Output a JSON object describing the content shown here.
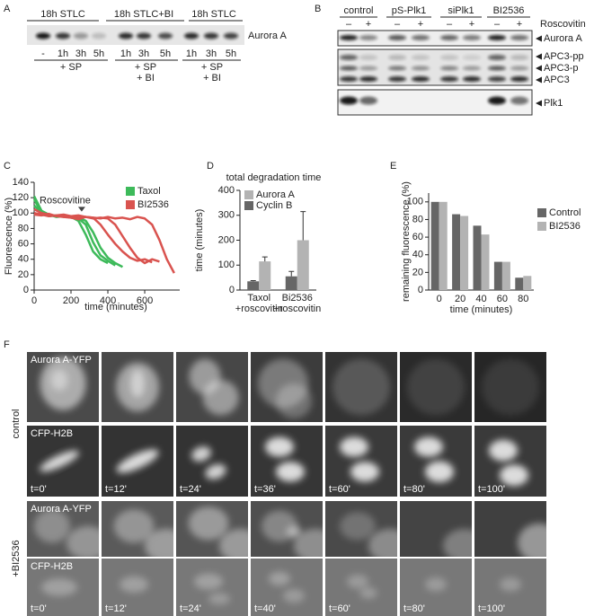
{
  "panel_a": {
    "letter": "A",
    "headers": [
      "18h STLC",
      "18h STLC+BI",
      "18h STLC"
    ],
    "lanes": [
      "-",
      "1h",
      "3h",
      "5h",
      "1h",
      "3h",
      "5h",
      "1h",
      "3h",
      "5h"
    ],
    "treatments": [
      [
        "+ SP"
      ],
      [
        "+ SP",
        "+ BI"
      ],
      [
        "+ SP",
        "+ BI"
      ]
    ],
    "protein": "Aurora A"
  },
  "panel_b": {
    "letter": "B",
    "groups": [
      "control",
      "pS-Plk1",
      "siPlk1",
      "BI2536"
    ],
    "signs": [
      "–",
      "+",
      "–",
      "+",
      "–",
      "+",
      "–",
      "+"
    ],
    "treatment": "Roscovitin",
    "labels": [
      "Aurora A",
      "APC3-pp",
      "APC3-p",
      "APC3",
      "Plk1"
    ]
  },
  "chart_data": [
    {
      "panel": "C",
      "type": "line",
      "ylabel": "Fluorescence (%)",
      "xlabel": "time (minutes)",
      "annotation": "Roscovitine",
      "legend": "upper right",
      "xlim": [
        0,
        790
      ],
      "xticks": [
        0,
        200,
        400,
        600
      ],
      "ylim": [
        0,
        140
      ],
      "yticks": [
        0,
        20,
        40,
        60,
        80,
        100,
        120,
        140
      ],
      "x": [
        0,
        40,
        80,
        120,
        160,
        200,
        240,
        280,
        320,
        360,
        400,
        440,
        480,
        520,
        560,
        600,
        640,
        680,
        720,
        760
      ],
      "series": [
        {
          "name": "Taxol",
          "color": "#3dba5a",
          "traces": [
            [
              118,
              100,
              97,
              96,
              97,
              95,
              90,
              72,
              50,
              40,
              35,
              null,
              null,
              null,
              null,
              null,
              null,
              null,
              null,
              null
            ],
            [
              122,
              103,
              98,
              95,
              96,
              94,
              93,
              85,
              62,
              45,
              38,
              32,
              null,
              null,
              null,
              null,
              null,
              null,
              null,
              null
            ],
            [
              110,
              100,
              96,
              97,
              95,
              96,
              94,
              90,
              75,
              55,
              42,
              35,
              30,
              null,
              null,
              null,
              null,
              null,
              null,
              null
            ]
          ]
        },
        {
          "name": "BI2536",
          "color": "#d9534f",
          "traces": [
            [
              100,
              98,
              96,
              97,
              98,
              96,
              97,
              95,
              94,
              85,
              72,
              60,
              50,
              42,
              38,
              40,
              36,
              null,
              null,
              null
            ],
            [
              105,
              100,
              98,
              96,
              97,
              95,
              94,
              95,
              93,
              94,
              93,
              85,
              70,
              55,
              42,
              35,
              40,
              37,
              null,
              null
            ],
            [
              98,
              97,
              99,
              96,
              95,
              94,
              92,
              95,
              94,
              93,
              95,
              93,
              94,
              92,
              95,
              93,
              85,
              65,
              40,
              22
            ]
          ]
        }
      ]
    },
    {
      "panel": "D",
      "type": "bar",
      "title": "total degradation time",
      "ylabel": "time (minutes)",
      "categories": [
        [
          "Taxol",
          "+roscovitin"
        ],
        [
          "Bi2536",
          "+roscovitin"
        ]
      ],
      "ylim": [
        0,
        400
      ],
      "yticks": [
        0,
        100,
        200,
        300,
        400
      ],
      "series": [
        {
          "name": "Aurora A",
          "color": "#b3b3b3",
          "values": [
            115,
            200
          ],
          "errors": [
            18,
            115
          ]
        },
        {
          "name": "Cyclin B",
          "color": "#666666",
          "values": [
            35,
            55
          ],
          "errors": [
            3,
            20
          ]
        }
      ]
    },
    {
      "panel": "E",
      "type": "bar",
      "ylabel": "remaining fluorescence (%)",
      "xlabel": "time (minutes)",
      "categories": [
        "0",
        "20",
        "40",
        "60",
        "80"
      ],
      "ylim": [
        0,
        110
      ],
      "yticks": [
        0,
        20,
        40,
        60,
        80,
        100
      ],
      "series": [
        {
          "name": "Control",
          "color": "#666666",
          "values": [
            100,
            86,
            73,
            32,
            14
          ]
        },
        {
          "name": "BI2536",
          "color": "#b3b3b3",
          "values": [
            100,
            84,
            63,
            32,
            16
          ]
        }
      ]
    }
  ],
  "panel_f": {
    "letter": "F",
    "groups": [
      {
        "name": "control",
        "channels": [
          "Aurora A-YFP",
          "CFP-H2B"
        ],
        "times": [
          "t=0'",
          "t=12'",
          "t=24'",
          "t=36'",
          "t=60'",
          "t=80'",
          "t=100'"
        ]
      },
      {
        "name": "+BI2536",
        "channels": [
          "Aurora A-YFP",
          "CFP-H2B"
        ],
        "times": [
          "t=0'",
          "t=12'",
          "t=24'",
          "t=40'",
          "t=60'",
          "t=80'",
          "t=100'"
        ]
      }
    ]
  }
}
